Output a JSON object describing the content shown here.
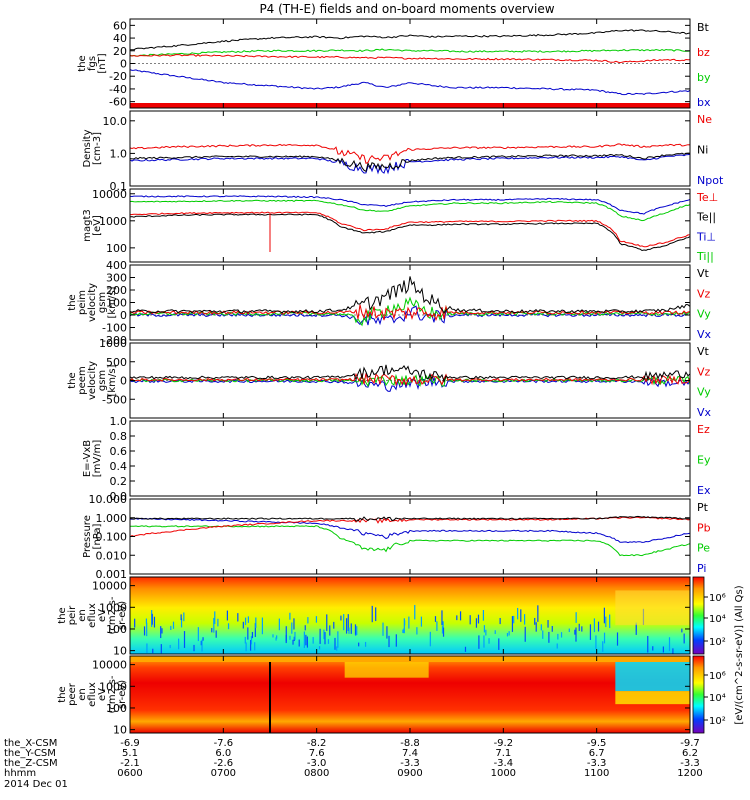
{
  "title": "P4 (TH-E) fields and on-board moments overview",
  "colors": {
    "black": "#000000",
    "red": "#ee0000",
    "green": "#00cc00",
    "blue": "#0000cc"
  },
  "panels": [
    {
      "key": "fgs",
      "ylabel": [
        "the",
        "fgs",
        "[nT]"
      ],
      "scale": "linear",
      "ylim": [
        -70,
        70
      ],
      "ticks": [
        {
          "v": 60,
          "t": "60"
        },
        {
          "v": 40,
          "t": "40"
        },
        {
          "v": 20,
          "t": "20"
        },
        {
          "v": 0,
          "t": "0"
        },
        {
          "v": -20,
          "t": "-20"
        },
        {
          "v": -40,
          "t": "-40"
        },
        {
          "v": -60,
          "t": "-60"
        }
      ],
      "legend": [
        {
          "text": "Bt",
          "color": "black"
        },
        {
          "text": "bz",
          "color": "red"
        },
        {
          "text": "by",
          "color": "green"
        },
        {
          "text": "bx",
          "color": "blue"
        }
      ]
    },
    {
      "key": "density",
      "ylabel": [
        "Density",
        "[cm-3]"
      ],
      "scale": "log",
      "ylim": [
        0.1,
        20
      ],
      "ticks": [
        {
          "v": 10,
          "t": "10.0"
        },
        {
          "v": 1,
          "t": "1.0"
        },
        {
          "v": 0.1,
          "t": "0.1"
        }
      ],
      "legend": [
        {
          "text": "Ne",
          "color": "red"
        },
        {
          "text": "Ni",
          "color": "black"
        },
        {
          "text": "Npot",
          "color": "blue"
        }
      ]
    },
    {
      "key": "temp",
      "ylabel": [
        "magt3",
        "[eV]"
      ],
      "scale": "log",
      "ylim": [
        30,
        15000
      ],
      "ticks": [
        {
          "v": 10000,
          "t": "10000"
        },
        {
          "v": 1000,
          "t": "1000"
        },
        {
          "v": 100,
          "t": "100"
        }
      ],
      "legend": [
        {
          "text": "Te⊥",
          "color": "red"
        },
        {
          "text": "Te||",
          "color": "black"
        },
        {
          "text": "Ti⊥",
          "color": "blue"
        },
        {
          "text": "Ti||",
          "color": "green"
        }
      ]
    },
    {
      "key": "vi",
      "ylabel": [
        "the",
        "peim",
        "velocity",
        "gsm",
        "[km/s]"
      ],
      "scale": "linear",
      "ylim": [
        -200,
        400
      ],
      "ticks": [
        {
          "v": 400,
          "t": "400"
        },
        {
          "v": 300,
          "t": "300"
        },
        {
          "v": 200,
          "t": "200"
        },
        {
          "v": 100,
          "t": "100"
        },
        {
          "v": 0,
          "t": "0"
        },
        {
          "v": -100,
          "t": "-100"
        },
        {
          "v": -200,
          "t": "-200"
        }
      ],
      "legend": [
        {
          "text": "Vt",
          "color": "black"
        },
        {
          "text": "Vz",
          "color": "red"
        },
        {
          "text": "Vy",
          "color": "green"
        },
        {
          "text": "Vx",
          "color": "blue"
        }
      ]
    },
    {
      "key": "ve",
      "ylabel": [
        "the",
        "peem",
        "velocity",
        "gsm",
        "[km/s]"
      ],
      "scale": "linear",
      "ylim": [
        -1000,
        1000
      ],
      "ticks": [
        {
          "v": 1000,
          "t": "1000"
        },
        {
          "v": 500,
          "t": "500"
        },
        {
          "v": 0,
          "t": "0"
        },
        {
          "v": -500,
          "t": "-500"
        }
      ],
      "legend": [
        {
          "text": "Vt",
          "color": "black"
        },
        {
          "text": "Vz",
          "color": "red"
        },
        {
          "text": "Vy",
          "color": "green"
        },
        {
          "text": "Vx",
          "color": "blue"
        }
      ]
    },
    {
      "key": "efield",
      "ylabel": [
        "E=-VxB",
        "[mV/m]"
      ],
      "scale": "linear",
      "ylim": [
        0,
        1
      ],
      "ticks": [
        {
          "v": 1.0,
          "t": "1.0"
        },
        {
          "v": 0.8,
          "t": "0.8"
        },
        {
          "v": 0.6,
          "t": "0.6"
        },
        {
          "v": 0.4,
          "t": "0.4"
        },
        {
          "v": 0.2,
          "t": "0.2"
        },
        {
          "v": 0.0,
          "t": "0.0"
        }
      ],
      "legend": [
        {
          "text": "Ez",
          "color": "red"
        },
        {
          "text": "Ey",
          "color": "green"
        },
        {
          "text": "Ex",
          "color": "blue"
        }
      ]
    },
    {
      "key": "pressure",
      "ylabel": [
        "Pressure",
        "[nPa]"
      ],
      "scale": "log",
      "ylim": [
        0.001,
        10
      ],
      "ticks": [
        {
          "v": 10,
          "t": "10.000"
        },
        {
          "v": 1,
          "t": "1.000"
        },
        {
          "v": 0.1,
          "t": "0.100"
        },
        {
          "v": 0.01,
          "t": "0.010"
        },
        {
          "v": 0.001,
          "t": "0.001"
        }
      ],
      "legend": [
        {
          "text": "Pt",
          "color": "black"
        },
        {
          "text": "Pb",
          "color": "red"
        },
        {
          "text": "Pe",
          "color": "green"
        },
        {
          "text": "Pi",
          "color": "blue"
        }
      ]
    },
    {
      "key": "peir",
      "ylabel": [
        "the",
        "peir",
        "en",
        "eflux",
        "eV",
        "(cm2-s-",
        "sr-eV)"
      ],
      "scale": "log",
      "ylim": [
        7,
        25000
      ],
      "ticks": [
        {
          "v": 10000,
          "t": "10000"
        },
        {
          "v": 1000,
          "t": "1000"
        },
        {
          "v": 100,
          "t": "100"
        },
        {
          "v": 10,
          "t": "10"
        }
      ],
      "legend": []
    },
    {
      "key": "peer",
      "ylabel": [
        "the",
        "peer",
        "en",
        "eflux",
        "eV",
        "(cm2-s-",
        "sr-eV)"
      ],
      "scale": "log",
      "ylim": [
        7,
        25000
      ],
      "ticks": [
        {
          "v": 10000,
          "t": "10000"
        },
        {
          "v": 1000,
          "t": "1000"
        },
        {
          "v": 100,
          "t": "100"
        },
        {
          "v": 10,
          "t": "10"
        }
      ],
      "legend": []
    }
  ],
  "colorbar": {
    "label": "[eV/(cm^2-s-sr-eV)] (All Qs)",
    "ticks": [
      "10⁶",
      "10⁴",
      "10²",
      "10⁶",
      "10⁴",
      "10²"
    ]
  },
  "xaxis": {
    "row_labels": [
      "the_X-CSM",
      "the_Y-CSM",
      "the_Z-CSM",
      "hhmm",
      "2014 Dec 01"
    ],
    "columns": [
      {
        "x": "-6.9",
        "y": "5.1",
        "z": "-2.1",
        "t": "0600"
      },
      {
        "x": "-7.6",
        "y": "6.0",
        "z": "-2.6",
        "t": "0700"
      },
      {
        "x": "-8.2",
        "y": "7.6",
        "z": "-3.0",
        "t": "0800"
      },
      {
        "x": "-8.8",
        "y": "7.4",
        "z": "-3.3",
        "t": "0900"
      },
      {
        "x": "-9.2",
        "y": "7.1",
        "z": "-3.4",
        "t": "1000"
      },
      {
        "x": "-9.5",
        "y": "6.7",
        "z": "-3.3",
        "t": "1100"
      },
      {
        "x": "-9.7",
        "y": "6.2",
        "z": "-3.3",
        "t": "1200"
      }
    ]
  },
  "chart_data": {
    "type": "line",
    "title": "P4 (TH-E) fields and on-board moments overview",
    "x_hours": [
      6.0,
      6.5,
      7.0,
      7.5,
      8.0,
      8.25,
      8.5,
      8.75,
      9.0,
      9.25,
      9.5,
      10.0,
      10.5,
      11.0,
      11.25,
      11.5,
      11.75,
      12.0
    ],
    "series": [
      {
        "panel": "fgs",
        "name": "Bt",
        "values": [
          22,
          28,
          35,
          40,
          42,
          40,
          43,
          41,
          44,
          42,
          43,
          43,
          45,
          48,
          52,
          52,
          50,
          47
        ]
      },
      {
        "panel": "fgs",
        "name": "bz",
        "values": [
          12,
          13,
          12,
          11,
          10,
          10,
          9,
          9,
          8,
          8,
          7,
          7,
          6,
          5,
          2,
          4,
          6,
          5
        ]
      },
      {
        "panel": "fgs",
        "name": "by",
        "values": [
          12,
          15,
          18,
          20,
          20,
          21,
          20,
          22,
          20,
          20,
          19,
          19,
          19,
          20,
          21,
          21,
          21,
          20
        ]
      },
      {
        "panel": "fgs",
        "name": "bx",
        "values": [
          -10,
          -20,
          -30,
          -35,
          -40,
          -37,
          -30,
          -38,
          -30,
          -35,
          -38,
          -38,
          -40,
          -42,
          -48,
          -48,
          -45,
          -43
        ]
      },
      {
        "panel": "density",
        "name": "Ne",
        "values": [
          1.4,
          1.6,
          1.7,
          1.8,
          1.8,
          1.1,
          0.7,
          0.7,
          1.3,
          1.4,
          1.5,
          1.5,
          1.6,
          1.6,
          1.9,
          1.6,
          1.8,
          1.8
        ]
      },
      {
        "panel": "density",
        "name": "Ni",
        "values": [
          0.7,
          0.75,
          0.8,
          0.8,
          0.8,
          0.6,
          0.4,
          0.4,
          0.6,
          0.7,
          0.75,
          0.8,
          0.85,
          0.85,
          0.9,
          0.7,
          0.9,
          1.0
        ]
      },
      {
        "panel": "density",
        "name": "Npot",
        "values": [
          0.6,
          0.65,
          0.7,
          0.7,
          0.7,
          0.5,
          0.35,
          0.35,
          0.55,
          0.6,
          0.65,
          0.7,
          0.75,
          0.75,
          0.8,
          0.6,
          0.8,
          0.9
        ]
      },
      {
        "panel": "temp",
        "name": "Te⊥",
        "values": [
          1700,
          1900,
          2000,
          2000,
          2000,
          800,
          450,
          500,
          900,
          900,
          950,
          950,
          1000,
          1000,
          180,
          110,
          160,
          300
        ]
      },
      {
        "panel": "temp",
        "name": "Te||",
        "values": [
          1400,
          1600,
          1700,
          1700,
          1700,
          600,
          350,
          400,
          700,
          700,
          750,
          750,
          800,
          800,
          140,
          80,
          120,
          250
        ]
      },
      {
        "panel": "temp",
        "name": "Ti⊥",
        "values": [
          8000,
          8000,
          8000,
          8000,
          7500,
          6000,
          4000,
          3500,
          5000,
          5500,
          6000,
          6000,
          6500,
          6000,
          2500,
          1800,
          3500,
          6000
        ]
      },
      {
        "panel": "temp",
        "name": "Ti||",
        "values": [
          5000,
          5200,
          5500,
          5500,
          5500,
          4000,
          2500,
          2200,
          3500,
          4000,
          4500,
          4500,
          5000,
          4500,
          1500,
          1000,
          2000,
          4000
        ]
      },
      {
        "panel": "vi",
        "name": "Vt",
        "values": [
          30,
          30,
          30,
          30,
          30,
          40,
          80,
          150,
          250,
          100,
          40,
          30,
          30,
          30,
          30,
          30,
          40,
          80
        ]
      },
      {
        "panel": "vi",
        "name": "Vz",
        "values": [
          20,
          20,
          20,
          20,
          20,
          20,
          30,
          10,
          20,
          20,
          20,
          20,
          20,
          20,
          20,
          20,
          20,
          20
        ]
      },
      {
        "panel": "vi",
        "name": "Vy",
        "values": [
          10,
          10,
          10,
          10,
          10,
          10,
          -30,
          50,
          80,
          10,
          10,
          10,
          10,
          10,
          10,
          10,
          10,
          10
        ]
      },
      {
        "panel": "vi",
        "name": "Vx",
        "values": [
          0,
          0,
          0,
          0,
          0,
          0,
          -40,
          -60,
          30,
          -20,
          0,
          0,
          0,
          0,
          0,
          0,
          0,
          0
        ]
      },
      {
        "panel": "ve",
        "name": "Vt",
        "values": [
          80,
          80,
          80,
          80,
          80,
          100,
          200,
          300,
          250,
          120,
          80,
          80,
          80,
          80,
          80,
          100,
          150,
          200
        ]
      },
      {
        "panel": "ve",
        "name": "Vz",
        "values": [
          20,
          20,
          20,
          20,
          20,
          20,
          40,
          30,
          20,
          20,
          20,
          20,
          20,
          20,
          20,
          20,
          20,
          20
        ]
      },
      {
        "panel": "ve",
        "name": "Vy",
        "values": [
          0,
          0,
          0,
          0,
          0,
          0,
          -20,
          20,
          10,
          0,
          0,
          0,
          0,
          0,
          0,
          0,
          0,
          0
        ]
      },
      {
        "panel": "ve",
        "name": "Vx",
        "values": [
          -20,
          -20,
          -20,
          -20,
          -20,
          -30,
          -100,
          -150,
          -80,
          -30,
          -20,
          -20,
          -20,
          -20,
          -20,
          -30,
          -60,
          -80
        ]
      },
      {
        "panel": "pressure",
        "name": "Pt",
        "values": [
          0.9,
          0.9,
          0.9,
          0.9,
          0.9,
          0.9,
          0.9,
          0.9,
          0.9,
          0.9,
          0.9,
          0.9,
          0.9,
          0.9,
          1.1,
          1.1,
          1.0,
          0.9
        ]
      },
      {
        "panel": "pressure",
        "name": "Pb",
        "values": [
          0.1,
          0.2,
          0.35,
          0.5,
          0.7,
          0.7,
          0.7,
          0.7,
          0.8,
          0.8,
          0.8,
          0.8,
          0.8,
          0.9,
          1.0,
          1.0,
          0.9,
          0.8
        ]
      },
      {
        "panel": "pressure",
        "name": "Pe",
        "values": [
          0.35,
          0.35,
          0.35,
          0.35,
          0.35,
          0.08,
          0.02,
          0.02,
          0.06,
          0.06,
          0.06,
          0.06,
          0.06,
          0.06,
          0.01,
          0.01,
          0.02,
          0.04
        ]
      },
      {
        "panel": "pressure",
        "name": "Pi",
        "values": [
          0.9,
          0.8,
          0.7,
          0.6,
          0.5,
          0.3,
          0.15,
          0.1,
          0.2,
          0.2,
          0.2,
          0.2,
          0.2,
          0.15,
          0.05,
          0.05,
          0.08,
          0.15
        ]
      }
    ]
  }
}
